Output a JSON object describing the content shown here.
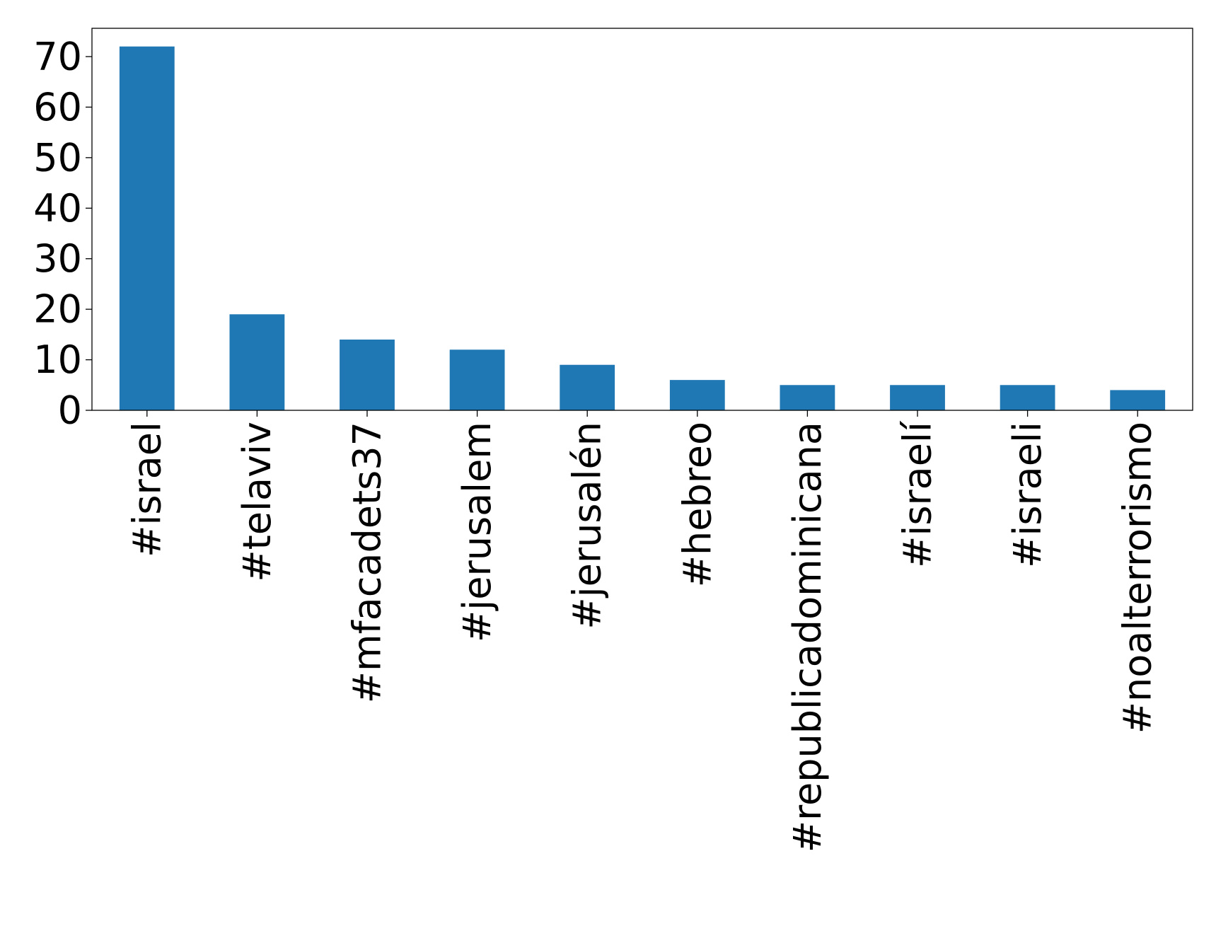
{
  "chart_data": {
    "type": "bar",
    "categories": [
      "#israel",
      "#telaviv",
      "#mfacadets37",
      "#jerusalem",
      "#jerusalén",
      "#hebreo",
      "#republicadominicana",
      "#israelí",
      "#israeli",
      "#noalterrorismo"
    ],
    "values": [
      72,
      19,
      14,
      12,
      9,
      6,
      5,
      5,
      5,
      4
    ],
    "title": "",
    "xlabel": "",
    "ylabel": "",
    "ylim": [
      0,
      75.6
    ],
    "yticks": [
      0,
      10,
      20,
      30,
      40,
      50,
      60,
      70
    ],
    "grid": false,
    "bar_color": "#1f77b4"
  }
}
